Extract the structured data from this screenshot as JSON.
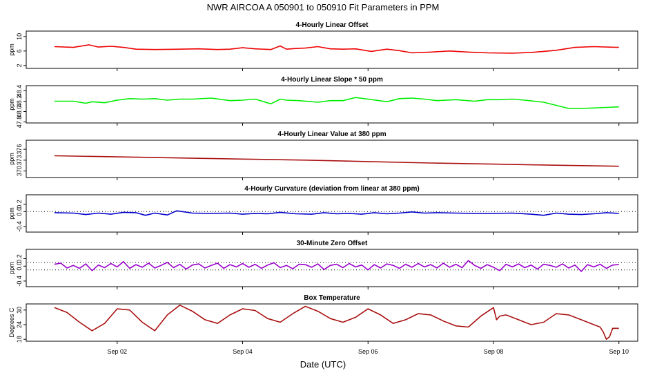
{
  "title": "NWR   AIRCOA A   050901 to 050910   Fit Parameters in PPM",
  "xlabel": "Date (UTC)",
  "x_ticks": [
    "Sep 02",
    "Sep 04",
    "Sep 06",
    "Sep 08",
    "Sep 10"
  ],
  "x_tick_days": [
    2,
    4,
    6,
    8,
    10
  ],
  "xlim_days": [
    0.55,
    10.3
  ],
  "chart_data": [
    {
      "type": "line",
      "title": "4-Hourly Linear Offset",
      "ylabel": "ppm",
      "yticks": [
        "2",
        "6",
        "10"
      ],
      "ytick_values": [
        2,
        6,
        10
      ],
      "ylim": [
        1.2,
        11.5
      ],
      "color": "#ee0000",
      "x": [
        1.0,
        1.3,
        1.55,
        1.7,
        1.9,
        2.1,
        2.3,
        2.6,
        3.0,
        3.3,
        3.6,
        3.8,
        4.0,
        4.2,
        4.45,
        4.6,
        4.7,
        4.85,
        5.0,
        5.2,
        5.4,
        5.6,
        5.8,
        6.05,
        6.3,
        6.5,
        6.7,
        7.0,
        7.3,
        7.6,
        7.9,
        8.3,
        8.6,
        8.8,
        9.0,
        9.3,
        9.6,
        10.0
      ],
      "y": [
        7.2,
        7.0,
        7.7,
        7.1,
        7.3,
        7.0,
        6.5,
        6.4,
        6.5,
        6.6,
        6.4,
        6.5,
        6.9,
        6.6,
        6.4,
        7.4,
        6.5,
        6.7,
        6.8,
        7.2,
        6.6,
        6.5,
        6.6,
        5.9,
        6.5,
        6.1,
        5.5,
        5.7,
        6.0,
        5.7,
        5.5,
        5.4,
        5.6,
        5.9,
        6.2,
        7.0,
        7.2,
        7.0
      ]
    },
    {
      "type": "line",
      "title": "4-Hourly Linear Slope * 50 ppm",
      "ylabel": "ppm",
      "yticks": [
        "47.8",
        "48.0",
        "48.2",
        "48.4"
      ],
      "ytick_values": [
        47.8,
        48.0,
        48.2,
        48.4
      ],
      "ylim": [
        47.78,
        48.5
      ],
      "color": "#00ee00",
      "x": [
        1.0,
        1.3,
        1.5,
        1.6,
        1.8,
        2.0,
        2.2,
        2.4,
        2.6,
        2.8,
        3.0,
        3.2,
        3.5,
        3.8,
        4.0,
        4.2,
        4.45,
        4.6,
        4.7,
        4.9,
        5.2,
        5.4,
        5.6,
        5.8,
        6.0,
        6.3,
        6.5,
        6.7,
        6.9,
        7.1,
        7.4,
        7.7,
        7.9,
        8.1,
        8.3,
        8.5,
        8.8,
        9.0,
        9.2,
        9.4,
        9.6,
        9.8,
        10.0
      ],
      "y": [
        48.2,
        48.2,
        48.16,
        48.19,
        48.17,
        48.22,
        48.25,
        48.24,
        48.25,
        48.22,
        48.24,
        48.24,
        48.26,
        48.21,
        48.22,
        48.24,
        48.15,
        48.24,
        48.22,
        48.21,
        48.18,
        48.21,
        48.21,
        48.27,
        48.24,
        48.19,
        48.25,
        48.26,
        48.24,
        48.21,
        48.23,
        48.2,
        48.23,
        48.23,
        48.24,
        48.22,
        48.18,
        48.12,
        48.06,
        48.06,
        48.07,
        48.08,
        48.09
      ]
    },
    {
      "type": "line",
      "title": "4-Hourly Linear Value at 380 ppm",
      "ylabel": "ppm",
      "yticks": [
        "370",
        "373",
        "376"
      ],
      "ytick_values": [
        370,
        373,
        376
      ],
      "ylim": [
        368.2,
        378.5
      ],
      "color": "#aa1111",
      "x": [
        1.0,
        2.0,
        3.0,
        4.0,
        5.0,
        6.0,
        7.0,
        8.0,
        9.0,
        10.0
      ],
      "y": [
        374.2,
        373.9,
        373.6,
        373.3,
        373.0,
        372.6,
        372.2,
        371.9,
        371.6,
        371.3
      ]
    },
    {
      "type": "line",
      "title": "4-Hourly Curvature (deviation from linear at 380 ppm)",
      "ylabel": "ppm",
      "yticks": [
        "-0.4",
        "0.0",
        "0.2"
      ],
      "ytick_values": [
        -0.4,
        0.0,
        0.2
      ],
      "ylim": [
        -0.55,
        0.45
      ],
      "color": "#0000cc",
      "dotted_reference": 0.0,
      "x": [
        1.0,
        1.3,
        1.5,
        1.7,
        1.9,
        2.1,
        2.3,
        2.45,
        2.6,
        2.8,
        2.95,
        3.2,
        3.5,
        3.8,
        4.0,
        4.2,
        4.4,
        4.6,
        4.85,
        5.1,
        5.3,
        5.5,
        5.7,
        5.9,
        6.1,
        6.3,
        6.5,
        6.7,
        6.9,
        7.1,
        7.4,
        7.7,
        8.0,
        8.3,
        8.6,
        8.8,
        9.0,
        9.2,
        9.4,
        9.6,
        9.8,
        10.0
      ],
      "y": [
        -0.03,
        -0.04,
        -0.08,
        -0.04,
        -0.07,
        -0.02,
        -0.03,
        -0.1,
        -0.04,
        -0.09,
        0.02,
        -0.04,
        -0.05,
        -0.04,
        -0.07,
        -0.05,
        -0.06,
        -0.02,
        -0.06,
        -0.07,
        -0.03,
        -0.06,
        -0.05,
        -0.07,
        -0.03,
        -0.06,
        -0.04,
        -0.01,
        -0.04,
        -0.03,
        -0.04,
        -0.05,
        -0.05,
        -0.04,
        -0.07,
        -0.1,
        -0.04,
        -0.07,
        -0.08,
        -0.06,
        -0.03,
        -0.05
      ]
    },
    {
      "type": "line",
      "title": "30-Minute Zero Offset",
      "ylabel": "ppm",
      "yticks": [
        "-0.4",
        "0.0",
        "0.2"
      ],
      "ytick_values": [
        -0.4,
        0.0,
        0.2
      ],
      "ylim": [
        -0.55,
        0.45
      ],
      "color": "#9900cc",
      "dotted_references": [
        0.1,
        -0.1
      ],
      "x": [
        1.0,
        1.1,
        1.2,
        1.3,
        1.4,
        1.5,
        1.6,
        1.7,
        1.8,
        1.9,
        2.0,
        2.1,
        2.2,
        2.3,
        2.4,
        2.5,
        2.6,
        2.7,
        2.8,
        2.9,
        3.0,
        3.1,
        3.2,
        3.3,
        3.4,
        3.5,
        3.6,
        3.7,
        3.8,
        3.9,
        4.0,
        4.1,
        4.2,
        4.3,
        4.4,
        4.5,
        4.6,
        4.7,
        4.8,
        4.9,
        5.0,
        5.1,
        5.2,
        5.3,
        5.4,
        5.5,
        5.6,
        5.7,
        5.8,
        5.9,
        6.0,
        6.1,
        6.2,
        6.3,
        6.4,
        6.5,
        6.6,
        6.7,
        6.8,
        6.9,
        7.0,
        7.1,
        7.2,
        7.3,
        7.4,
        7.5,
        7.6,
        7.7,
        7.8,
        7.9,
        8.0,
        8.1,
        8.2,
        8.3,
        8.4,
        8.5,
        8.6,
        8.7,
        8.8,
        8.9,
        9.0,
        9.1,
        9.2,
        9.3,
        9.4,
        9.5,
        9.6,
        9.7,
        9.8,
        9.9,
        10.0
      ],
      "y": [
        0.05,
        0.08,
        -0.05,
        0.02,
        -0.06,
        0.06,
        -0.12,
        0.03,
        -0.04,
        0.07,
        -0.02,
        0.12,
        -0.06,
        0.04,
        -0.03,
        0.08,
        -0.05,
        0.02,
        0.1,
        -0.04,
        0.05,
        -0.08,
        0.03,
        0.06,
        -0.05,
        0.02,
        0.08,
        -0.06,
        0.04,
        -0.02,
        0.07,
        -0.03,
        0.05,
        -0.06,
        0.03,
        0.09,
        -0.04,
        0.02,
        -0.07,
        0.05,
        0.04,
        -0.03,
        0.06,
        -0.09,
        0.02,
        0.05,
        -0.04,
        0.07,
        -0.02,
        0.03,
        -0.1,
        0.04,
        -0.05,
        0.06,
        0.02,
        -0.06,
        0.05,
        -0.03,
        0.07,
        -0.02,
        0.04,
        -0.05,
        0.08,
        -0.03,
        0.05,
        -0.04,
        0.15,
        0.02,
        -0.06,
        0.04,
        -0.03,
        -0.12,
        0.05,
        -0.02,
        0.06,
        -0.04,
        0.03,
        -0.08,
        0.05,
        0.02,
        -0.03,
        0.06,
        -0.05,
        0.03,
        -0.14,
        0.04,
        -0.02,
        0.05,
        -0.06,
        0.03,
        0.04
      ]
    },
    {
      "type": "line",
      "title": "Box Temperature",
      "ylabel": "Degrees C",
      "yticks": [
        "18",
        "24",
        "30"
      ],
      "ytick_values": [
        18,
        24,
        30
      ],
      "ylim": [
        17.2,
        32.5
      ],
      "color": "#aa1111",
      "x": [
        1.0,
        1.2,
        1.4,
        1.6,
        1.8,
        2.0,
        2.2,
        2.4,
        2.6,
        2.8,
        3.0,
        3.2,
        3.4,
        3.6,
        3.8,
        4.0,
        4.2,
        4.4,
        4.6,
        4.8,
        5.0,
        5.2,
        5.4,
        5.6,
        5.8,
        6.0,
        6.2,
        6.4,
        6.6,
        6.8,
        7.0,
        7.2,
        7.4,
        7.6,
        7.8,
        8.0,
        8.05,
        8.1,
        8.2,
        8.4,
        8.6,
        8.8,
        9.0,
        9.2,
        9.4,
        9.6,
        9.7,
        9.75,
        9.8,
        9.85,
        9.9,
        10.0
      ],
      "y": [
        31.0,
        29.0,
        25.0,
        21.5,
        24.5,
        30.5,
        30.0,
        25.0,
        21.5,
        28.0,
        32.0,
        29.5,
        26.0,
        24.5,
        28.0,
        30.5,
        29.8,
        26.5,
        25.0,
        28.5,
        31.5,
        29.5,
        26.5,
        25.0,
        27.0,
        30.5,
        28.0,
        24.5,
        26.0,
        28.5,
        28.0,
        25.5,
        23.5,
        23.0,
        27.5,
        31.0,
        26.0,
        27.5,
        28.0,
        26.0,
        24.0,
        25.0,
        28.5,
        28.0,
        26.0,
        24.0,
        23.0,
        21.0,
        18.0,
        19.0,
        22.5,
        22.5
      ]
    }
  ]
}
